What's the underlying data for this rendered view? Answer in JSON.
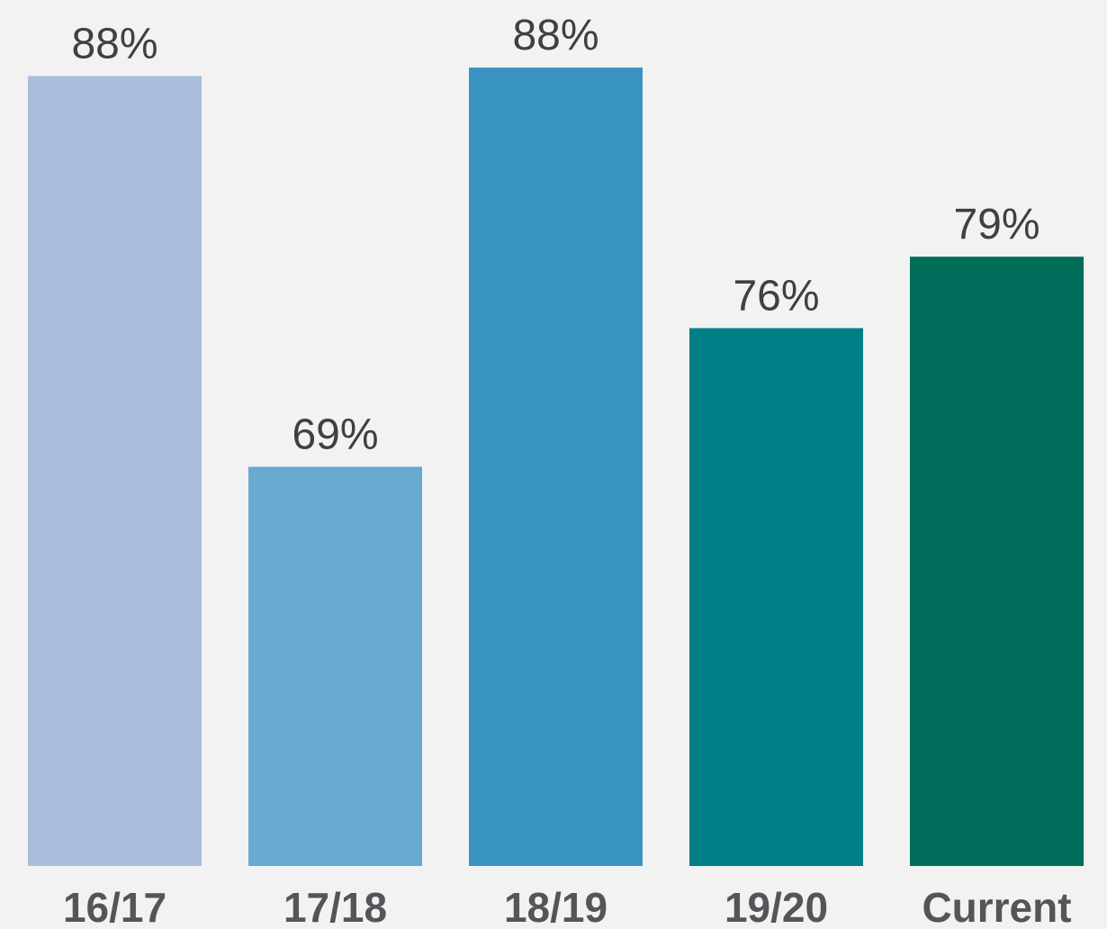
{
  "chart_data": {
    "type": "bar",
    "categories": [
      "16/17",
      "17/18",
      "18/19",
      "19/20",
      "Current"
    ],
    "values": [
      87.6,
      69,
      88,
      75.6,
      79
    ],
    "value_labels": [
      "88%",
      "69%",
      "88%",
      "76%",
      "79%"
    ],
    "colors": [
      "#a9bedd",
      "#68aad0",
      "#3893c2",
      "#017f86",
      "#006e5a"
    ],
    "ylim": [
      50,
      90
    ]
  }
}
